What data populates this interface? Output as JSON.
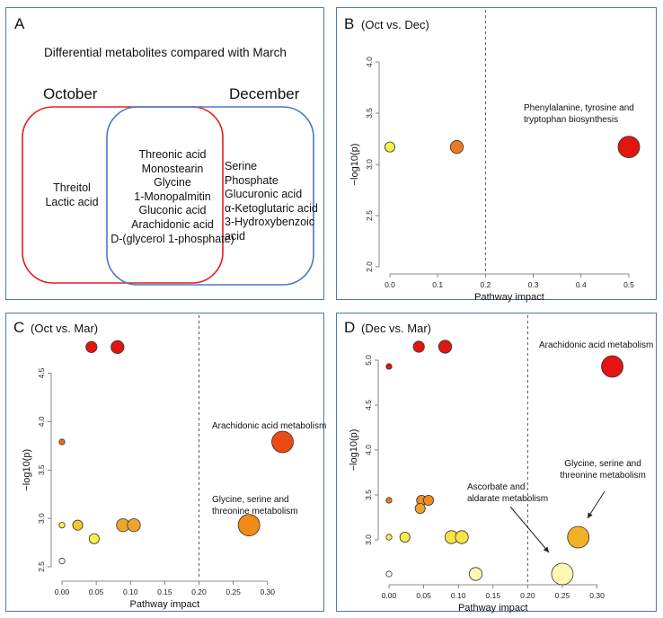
{
  "panels": {
    "A": {
      "letter": "A",
      "title": "Differential metabolites compared with March",
      "set_left_title": "October",
      "set_right_title": "December",
      "october_only": [
        "Threitol",
        "Lactic acid"
      ],
      "shared": [
        "Threonic acid",
        "Monostearin",
        "Glycine",
        "1-Monopalmitin",
        "Gluconic acid",
        "Arachidonic acid",
        "D-(glycerol 1-phosphate)"
      ],
      "december_only": [
        "Serine",
        "Phosphate",
        "Glucuronic acid",
        "α-Ketoglutaric acid",
        "3-Hydroxybenzoic",
        "acid"
      ],
      "colors": {
        "october": "#e0201e",
        "december": "#4a78c8"
      }
    },
    "B": {
      "letter": "B",
      "subtitle": "(Oct vs. Dec)"
    },
    "C": {
      "letter": "C",
      "subtitle": "(Oct vs. Mar)"
    },
    "D": {
      "letter": "D",
      "subtitle": "(Dec vs. Mar)"
    }
  },
  "chart_data": [
    {
      "panel": "B",
      "type": "scatter",
      "xlabel": "Pathway impact",
      "ylabel": "−log10(p)",
      "xlim": [
        0.0,
        0.5
      ],
      "ylim": [
        2.0,
        4.0
      ],
      "xticks": [
        "0.0",
        "0.1",
        "0.2",
        "0.3",
        "0.4",
        "0.5"
      ],
      "yticks": [
        "2.0",
        "2.5",
        "3.0",
        "3.5",
        "4.0"
      ],
      "threshold_x": 0.2,
      "points": [
        {
          "x": 0.0,
          "y": 3.17,
          "color": "#f2f24a",
          "size": "small"
        },
        {
          "x": 0.14,
          "y": 3.17,
          "color": "#ee7a1e",
          "size": "medium"
        },
        {
          "x": 0.5,
          "y": 3.17,
          "color": "#e4150f",
          "size": "large"
        }
      ],
      "annotations": [
        {
          "text": "Phenylalanine, tyrosine and tryptophan biosynthesis",
          "x": 0.5,
          "y": 3.17
        }
      ]
    },
    {
      "panel": "C",
      "type": "scatter",
      "xlabel": "Pathway impact",
      "ylabel": "−log10(p)",
      "xlim": [
        0.0,
        0.32
      ],
      "ylim": [
        2.5,
        4.82
      ],
      "xticks": [
        "0.00",
        "0.05",
        "0.10",
        "0.15",
        "0.20",
        "0.25",
        "0.30"
      ],
      "yticks": [
        "2.5",
        "3.0",
        "3.5",
        "4.0",
        "4.5"
      ],
      "threshold_x": 0.2,
      "points": [
        {
          "x": 0.043,
          "y": 4.77,
          "color": "#e0160f",
          "size": "small-medium"
        },
        {
          "x": 0.081,
          "y": 4.77,
          "color": "#e0160f",
          "size": "medium"
        },
        {
          "x": 0.0,
          "y": 3.79,
          "color": "#ec6e12",
          "size": "tiny"
        },
        {
          "x": 0.322,
          "y": 3.79,
          "color": "#ec4a12",
          "size": "large"
        },
        {
          "x": 0.0,
          "y": 2.93,
          "color": "#f4f24a",
          "size": "tiny"
        },
        {
          "x": 0.023,
          "y": 2.93,
          "color": "#f3c830",
          "size": "small"
        },
        {
          "x": 0.089,
          "y": 2.93,
          "color": "#eea52a",
          "size": "medium"
        },
        {
          "x": 0.105,
          "y": 2.93,
          "color": "#eea52a",
          "size": "medium"
        },
        {
          "x": 0.273,
          "y": 2.93,
          "color": "#f08c15",
          "size": "large"
        },
        {
          "x": 0.047,
          "y": 2.79,
          "color": "#f6f046",
          "size": "small"
        },
        {
          "x": 0.0,
          "y": 2.56,
          "color": "#ffffee",
          "size": "tiny"
        }
      ],
      "annotations": [
        {
          "text": "Arachidonic acid metabolism",
          "x": 0.322,
          "y": 3.79
        },
        {
          "text": "Glycine, serine and threonine metabolism",
          "x": 0.273,
          "y": 2.93
        }
      ]
    },
    {
      "panel": "D",
      "type": "scatter",
      "xlabel": "Pathway impact",
      "ylabel": "−log10(p)",
      "xlim": [
        0.0,
        0.32
      ],
      "ylim": [
        2.6,
        5.15
      ],
      "xticks": [
        "0.00",
        "0.05",
        "0.10",
        "0.15",
        "0.20",
        "0.25",
        "0.30"
      ],
      "yticks": [
        "3.0",
        "3.5",
        "4.0",
        "4.5",
        "5.0"
      ],
      "threshold_x": 0.2,
      "points": [
        {
          "x": 0.043,
          "y": 5.15,
          "color": "#e0160f",
          "size": "small-medium"
        },
        {
          "x": 0.081,
          "y": 5.15,
          "color": "#e0160f",
          "size": "medium"
        },
        {
          "x": 0.0,
          "y": 4.93,
          "color": "#e41512",
          "size": "tiny"
        },
        {
          "x": 0.322,
          "y": 4.93,
          "color": "#e41512",
          "size": "large"
        },
        {
          "x": 0.0,
          "y": 3.44,
          "color": "#ee7a1e",
          "size": "tiny"
        },
        {
          "x": 0.047,
          "y": 3.44,
          "color": "#ef8a24",
          "size": "small"
        },
        {
          "x": 0.057,
          "y": 3.44,
          "color": "#ef8a24",
          "size": "small"
        },
        {
          "x": 0.045,
          "y": 3.35,
          "color": "#f0a032",
          "size": "small"
        },
        {
          "x": 0.0,
          "y": 3.03,
          "color": "#f6f046",
          "size": "tiny"
        },
        {
          "x": 0.023,
          "y": 3.03,
          "color": "#f6f046",
          "size": "small"
        },
        {
          "x": 0.09,
          "y": 3.03,
          "color": "#f6e446",
          "size": "medium"
        },
        {
          "x": 0.105,
          "y": 3.03,
          "color": "#f6e446",
          "size": "medium"
        },
        {
          "x": 0.273,
          "y": 3.03,
          "color": "#f1b025",
          "size": "large"
        },
        {
          "x": 0.0,
          "y": 2.62,
          "color": "#ffffee",
          "size": "tiny"
        },
        {
          "x": 0.125,
          "y": 2.62,
          "color": "#fbf8b0",
          "size": "medium"
        },
        {
          "x": 0.25,
          "y": 2.62,
          "color": "#fbf8b0",
          "size": "large"
        }
      ],
      "annotations": [
        {
          "text": "Arachidonic acid metabolism",
          "x": 0.322,
          "y": 4.93
        },
        {
          "text": "Glycine, serine and threonine metabolism",
          "x": 0.273,
          "y": 3.03
        },
        {
          "text": "Ascorbate and aldarate metabolism",
          "x": 0.25,
          "y": 2.62
        }
      ]
    }
  ]
}
